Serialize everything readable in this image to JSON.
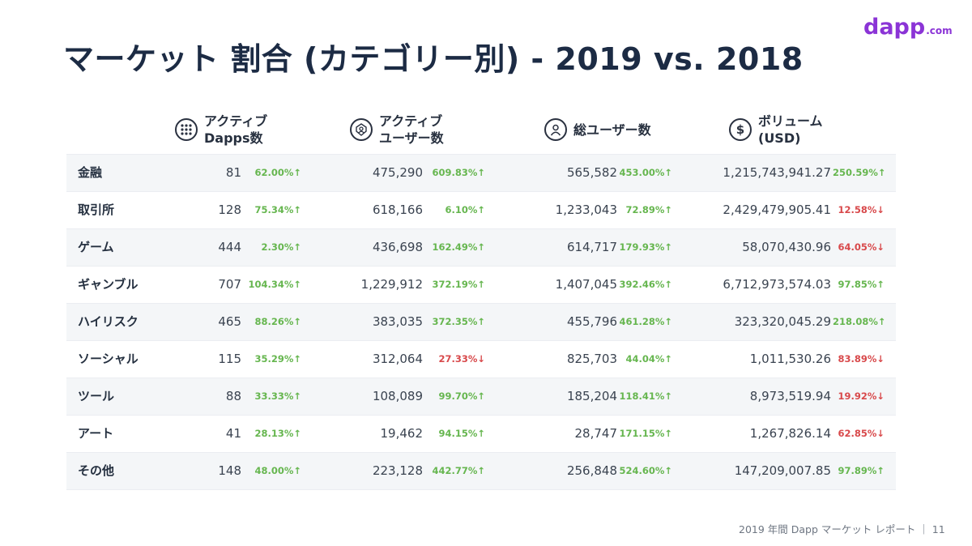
{
  "title": "マーケット 割合 (カテゴリー別) - 2019 vs. 2018",
  "logo": {
    "main": "dapp",
    "suffix": ".com"
  },
  "columns": [
    {
      "label": "アクティブ\nDapps数",
      "icon": "grid-dots-icon"
    },
    {
      "label": "アクティブ\nユーザー数",
      "icon": "active-user-icon"
    },
    {
      "label": "総ユーザー数",
      "icon": "user-icon"
    },
    {
      "label": "ボリューム\n(USD)",
      "icon": "dollar-icon"
    }
  ],
  "rows": [
    {
      "category": "金融",
      "cells": [
        {
          "value": "81",
          "change": "62.00%↑",
          "trend": "up"
        },
        {
          "value": "475,290",
          "change": "609.83%↑",
          "trend": "up"
        },
        {
          "value": "565,582",
          "change": "453.00%↑",
          "trend": "up"
        },
        {
          "value": "1,215,743,941.27",
          "change": "250.59%↑",
          "trend": "up"
        }
      ]
    },
    {
      "category": "取引所",
      "cells": [
        {
          "value": "128",
          "change": "75.34%↑",
          "trend": "up"
        },
        {
          "value": "618,166",
          "change": "6.10%↑",
          "trend": "up"
        },
        {
          "value": "1,233,043",
          "change": "72.89%↑",
          "trend": "up"
        },
        {
          "value": "2,429,479,905.41",
          "change": "12.58%↓",
          "trend": "down"
        }
      ]
    },
    {
      "category": "ゲーム",
      "cells": [
        {
          "value": "444",
          "change": "2.30%↑",
          "trend": "up"
        },
        {
          "value": "436,698",
          "change": "162.49%↑",
          "trend": "up"
        },
        {
          "value": "614,717",
          "change": "179.93%↑",
          "trend": "up"
        },
        {
          "value": "58,070,430.96",
          "change": "64.05%↓",
          "trend": "down"
        }
      ]
    },
    {
      "category": "ギャンブル",
      "cells": [
        {
          "value": "707",
          "change": "104.34%↑",
          "trend": "up"
        },
        {
          "value": "1,229,912",
          "change": "372.19%↑",
          "trend": "up"
        },
        {
          "value": "1,407,045",
          "change": "392.46%↑",
          "trend": "up"
        },
        {
          "value": "6,712,973,574.03",
          "change": "97.85%↑",
          "trend": "up"
        }
      ]
    },
    {
      "category": "ハイリスク",
      "cells": [
        {
          "value": "465",
          "change": "88.26%↑",
          "trend": "up"
        },
        {
          "value": "383,035",
          "change": "372.35%↑",
          "trend": "up"
        },
        {
          "value": "455,796",
          "change": "461.28%↑",
          "trend": "up"
        },
        {
          "value": "323,320,045.29",
          "change": "218.08%↑",
          "trend": "up"
        }
      ]
    },
    {
      "category": "ソーシャル",
      "cells": [
        {
          "value": "115",
          "change": "35.29%↑",
          "trend": "up"
        },
        {
          "value": "312,064",
          "change": "27.33%↓",
          "trend": "down"
        },
        {
          "value": "825,703",
          "change": "44.04%↑",
          "trend": "up"
        },
        {
          "value": "1,011,530.26",
          "change": "83.89%↓",
          "trend": "down"
        }
      ]
    },
    {
      "category": "ツール",
      "cells": [
        {
          "value": "88",
          "change": "33.33%↑",
          "trend": "up"
        },
        {
          "value": "108,089",
          "change": "99.70%↑",
          "trend": "up"
        },
        {
          "value": "185,204",
          "change": "118.41%↑",
          "trend": "up"
        },
        {
          "value": "8,973,519.94",
          "change": "19.92%↓",
          "trend": "down"
        }
      ]
    },
    {
      "category": "アート",
      "cells": [
        {
          "value": "41",
          "change": "28.13%↑",
          "trend": "up"
        },
        {
          "value": "19,462",
          "change": "94.15%↑",
          "trend": "up"
        },
        {
          "value": "28,747",
          "change": "171.15%↑",
          "trend": "up"
        },
        {
          "value": "1,267,826.14",
          "change": "62.85%↓",
          "trend": "down"
        }
      ]
    },
    {
      "category": "その他",
      "cells": [
        {
          "value": "148",
          "change": "48.00%↑",
          "trend": "up"
        },
        {
          "value": "223,128",
          "change": "442.77%↑",
          "trend": "up"
        },
        {
          "value": "256,848",
          "change": "524.60%↑",
          "trend": "up"
        },
        {
          "value": "147,209,007.85",
          "change": "97.89%↑",
          "trend": "up"
        }
      ]
    }
  ],
  "footer": "2019 年間 Dapp マーケット レポート ｜ 11",
  "colors": {
    "up": "#66b64f",
    "down": "#d8494b",
    "logo": "#8b34d6",
    "title": "#1c2b44"
  }
}
